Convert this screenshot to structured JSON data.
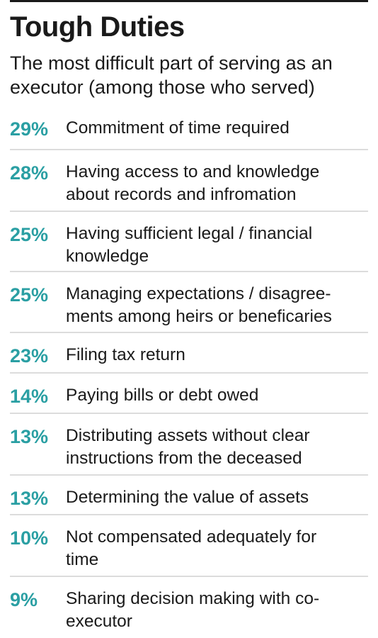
{
  "title": "Tough Duties",
  "subtitle": "The most difficult part of serving as an executor (among those who served)",
  "accent_color": "#2a9fa3",
  "chart_data": {
    "type": "table",
    "title": "Tough Duties",
    "subtitle": "The most difficult part of serving as an executor (among those who served)",
    "unit": "%",
    "rows": [
      {
        "value": 29,
        "label": "Commitment of time required",
        "lines": [
          "Commitment of time required"
        ]
      },
      {
        "value": 28,
        "label": "Having access to and knowledge about records and infromation",
        "lines": [
          "Having access to and knowledge",
          "about records and infromation"
        ]
      },
      {
        "value": 25,
        "label": "Having sufficient legal / financial knowledge",
        "lines": [
          "Having sufficient legal / financial",
          "knowledge"
        ]
      },
      {
        "value": 25,
        "label": "Managing expectations / disagreements among heirs or beneficaries",
        "lines": [
          "Managing expectations / disagree-",
          "ments among heirs or beneficaries"
        ]
      },
      {
        "value": 23,
        "label": "Filing tax return",
        "lines": [
          "Filing tax return"
        ]
      },
      {
        "value": 14,
        "label": "Paying bills or debt owed",
        "lines": [
          "Paying bills or debt owed"
        ]
      },
      {
        "value": 13,
        "label": "Distributing assets without clear instructions from the deceased",
        "lines": [
          "Distributing assets without clear",
          "instructions from the deceased"
        ]
      },
      {
        "value": 13,
        "label": "Determining the value of assets",
        "lines": [
          "Determining the value of assets"
        ]
      },
      {
        "value": 10,
        "label": "Not compensated adequately for time",
        "lines": [
          "Not compensated adequately for",
          "time"
        ]
      },
      {
        "value": 9,
        "label": "Sharing decision making with co-executor",
        "lines": [
          "Sharing decision making with co-",
          "executor"
        ]
      }
    ]
  }
}
